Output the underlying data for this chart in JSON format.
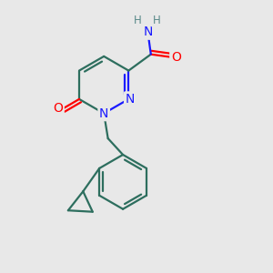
{
  "bg_color": "#e8e8e8",
  "bond_color": "#2d6e5e",
  "n_color": "#1a1aff",
  "o_color": "#ff0000",
  "h_color": "#5a8a8a",
  "bond_width": 1.6,
  "font_size_atom": 10,
  "font_size_h": 8.5,
  "xlim": [
    0,
    10
  ],
  "ylim": [
    0,
    10
  ]
}
